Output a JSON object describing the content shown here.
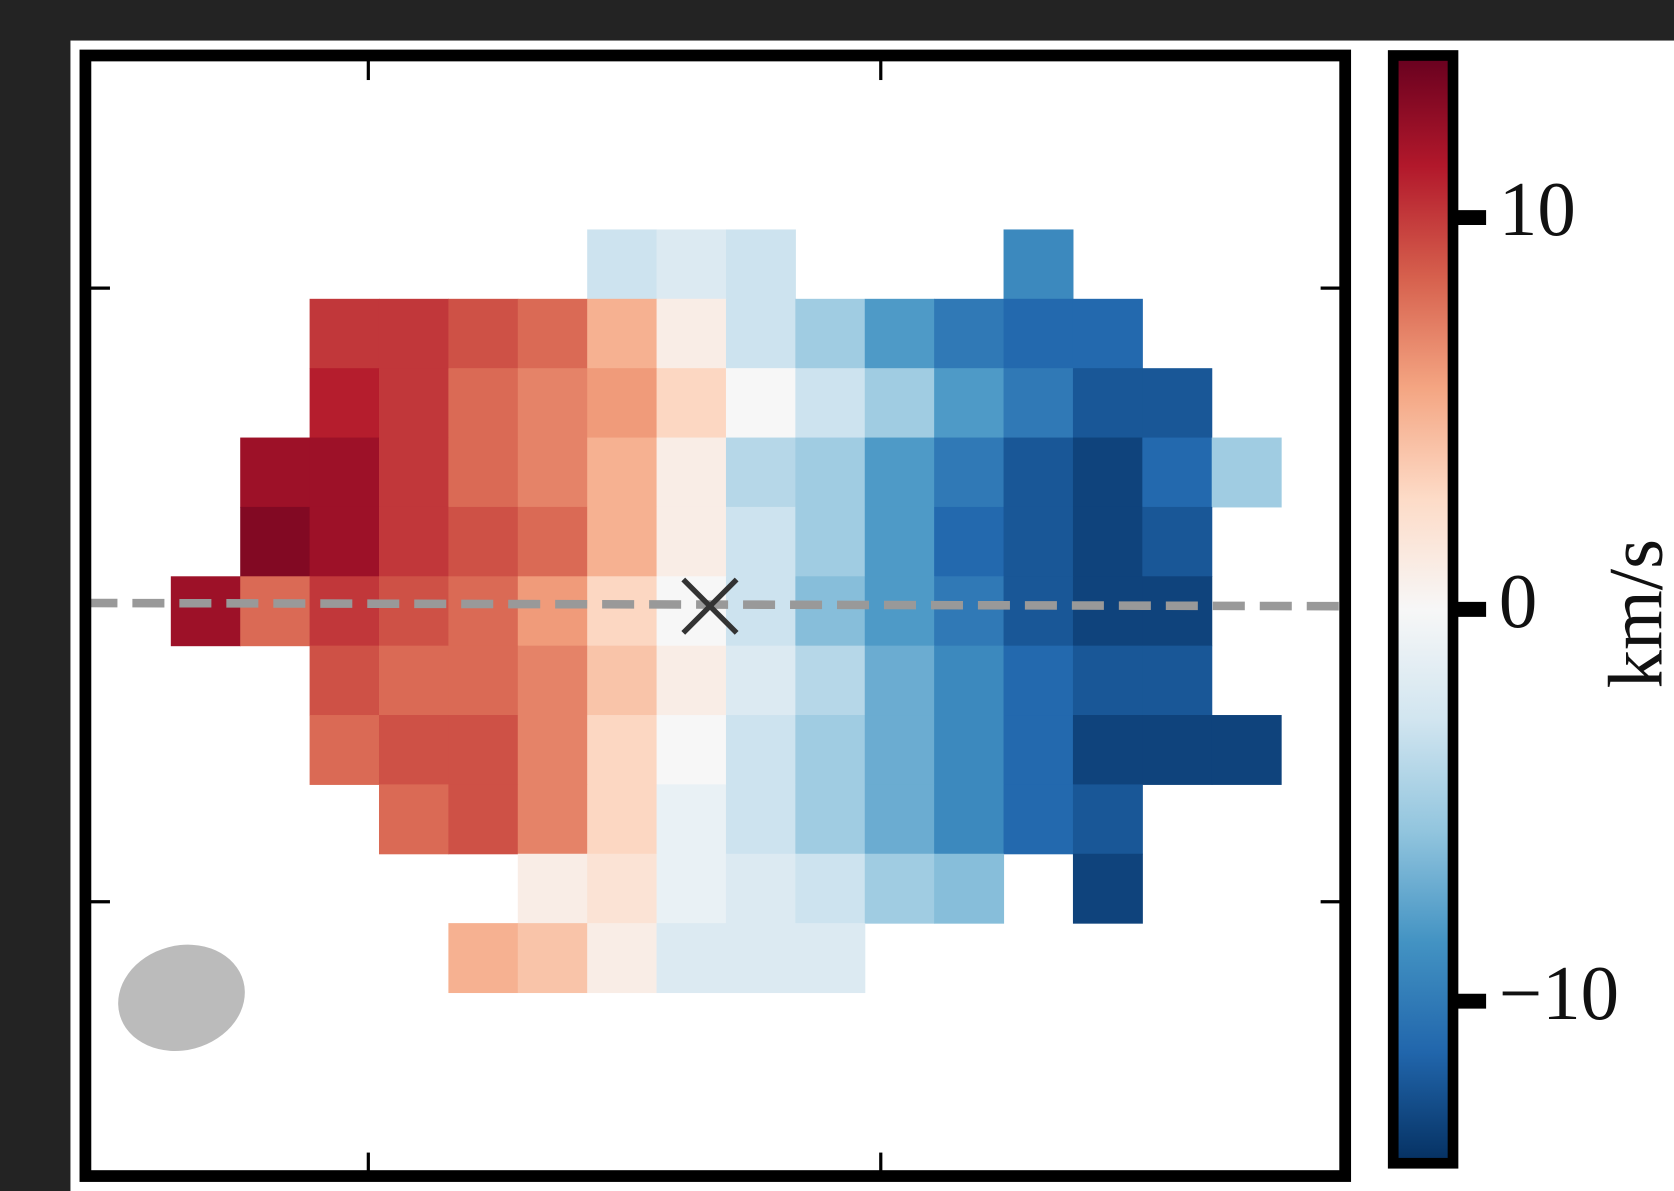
{
  "chart_data": {
    "type": "heatmap",
    "colormap": "RdBu_r",
    "values": [
      [
        null,
        null,
        null,
        null,
        null,
        null,
        -3,
        -2,
        -3,
        null,
        null,
        null,
        -9,
        null,
        null,
        null
      ],
      [
        null,
        null,
        10,
        10,
        9,
        8,
        5,
        1,
        -3,
        -5,
        -8,
        -10,
        -11,
        -11,
        null,
        null
      ],
      [
        null,
        null,
        11,
        10,
        8,
        7,
        6,
        3,
        0,
        -3,
        -5,
        -8,
        -10,
        -12,
        -12,
        null
      ],
      [
        null,
        12,
        12,
        10,
        8,
        7,
        5,
        1,
        -4,
        -5,
        -8,
        -10,
        -12,
        -13,
        -11,
        -5
      ],
      [
        null,
        13,
        12,
        10,
        9,
        8,
        5,
        1,
        -3,
        -5,
        -8,
        -11,
        -12,
        -13,
        -12,
        null
      ],
      [
        12,
        8,
        10,
        9,
        8,
        6,
        3,
        0,
        -3,
        -6,
        -8,
        -10,
        -12,
        -13,
        -13,
        null
      ],
      [
        null,
        null,
        9,
        8,
        8,
        7,
        4,
        1,
        -2,
        -4,
        -7,
        -9,
        -11,
        -12,
        -12,
        null
      ],
      [
        null,
        null,
        8,
        9,
        9,
        7,
        3,
        0,
        -3,
        -5,
        -7,
        -9,
        -11,
        -13,
        -13,
        -13
      ],
      [
        null,
        null,
        null,
        8,
        9,
        7,
        3,
        -1,
        -3,
        -5,
        -7,
        -9,
        -11,
        -12,
        null,
        null
      ],
      [
        null,
        null,
        null,
        null,
        null,
        1,
        2,
        -1,
        -2,
        -3,
        -5,
        -6,
        null,
        -13,
        null,
        null
      ],
      [
        null,
        null,
        null,
        null,
        5,
        4,
        1,
        -2,
        -2,
        -2,
        null,
        null,
        null,
        null,
        null,
        null
      ]
    ],
    "clim": [
      -14,
      14
    ],
    "cticks": [
      10,
      0,
      {
        "value": -10,
        "label": "−10"
      }
    ],
    "colorbar_label": "km/s"
  }
}
